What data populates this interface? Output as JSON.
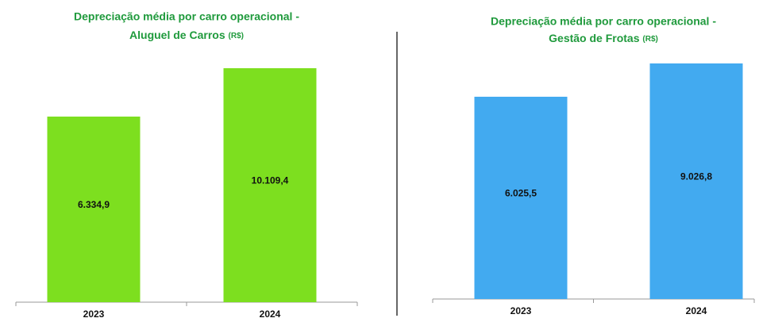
{
  "chart_data": [
    {
      "type": "bar",
      "title": [
        "Depreciação média por carro operacional -",
        "Aluguel de Carros"
      ],
      "unit": "(R$)",
      "categories": [
        "2023",
        "2024"
      ],
      "values": [
        6334.9,
        10109.4
      ],
      "value_labels": [
        "6.334,9",
        "10.109,4"
      ],
      "color": "#7ddf1f",
      "ylim": [
        -8145,
        11100
      ]
    },
    {
      "type": "bar",
      "title": [
        "Depreciação média por carro operacional -",
        "Gestão de Frotas"
      ],
      "unit": "(R$)",
      "categories": [
        "2023",
        "2024"
      ],
      "values": [
        6025.5,
        9026.8
      ],
      "value_labels": [
        "6.025,5",
        "9.026,8"
      ],
      "color": "#42aaf0",
      "ylim": [
        -12200,
        9740
      ]
    }
  ]
}
